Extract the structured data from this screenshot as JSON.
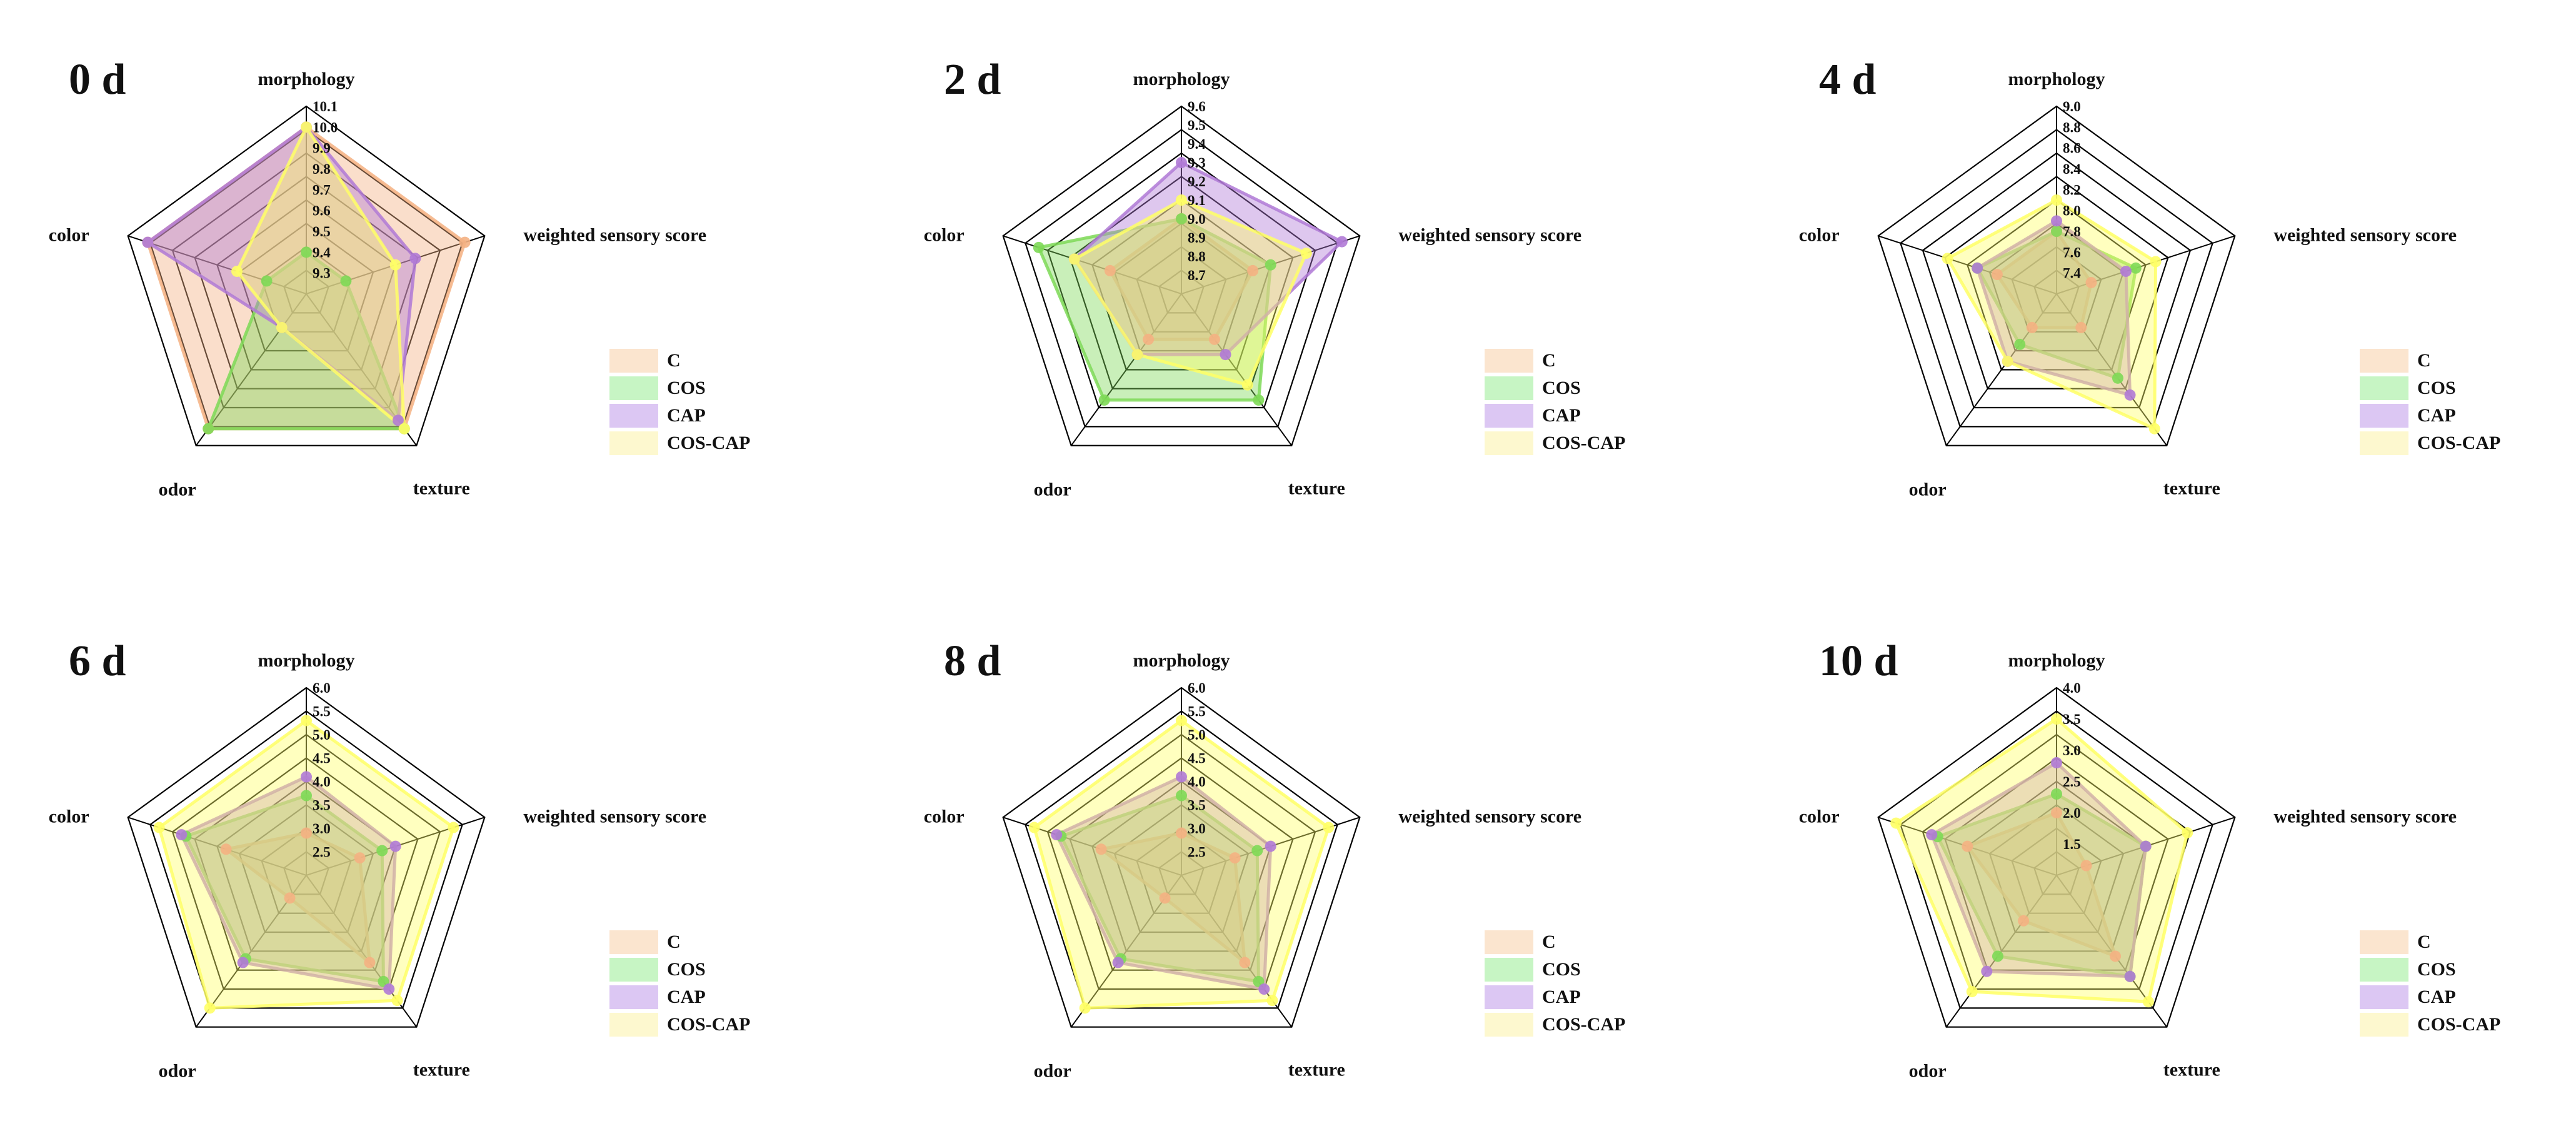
{
  "chart_data": [
    {
      "type": "radar",
      "title": "0 d",
      "axes": [
        "morphology",
        "weighted sensory score",
        "texture",
        "odor",
        "color"
      ],
      "rlim": [
        9.2,
        10.1
      ],
      "tick_labels": [
        "9.3",
        "9.4",
        "9.5",
        "9.6",
        "9.7",
        "9.8",
        "9.9",
        "10.0",
        "10.1"
      ],
      "series": [
        {
          "name": "C",
          "values": [
            10.0,
            10.0,
            10.0,
            10.0,
            10.0
          ]
        },
        {
          "name": "COS",
          "values": [
            9.4,
            9.4,
            10.0,
            10.0,
            9.4
          ]
        },
        {
          "name": "CAP",
          "values": [
            10.0,
            9.75,
            9.95,
            9.4,
            10.0
          ]
        },
        {
          "name": "COS-CAP",
          "values": [
            10.0,
            9.65,
            10.0,
            9.4,
            9.55
          ]
        }
      ],
      "legend": "right"
    },
    {
      "type": "radar",
      "title": "2 d",
      "axes": [
        "morphology",
        "weighted sensory score",
        "texture",
        "odor",
        "color"
      ],
      "rlim": [
        8.6,
        9.6
      ],
      "tick_labels": [
        "8.7",
        "8.8",
        "8.9",
        "9.0",
        "9.1",
        "9.2",
        "9.3",
        "9.4",
        "9.5",
        "9.6"
      ],
      "series": [
        {
          "name": "C",
          "values": [
            9.0,
            9.0,
            8.9,
            8.9,
            9.0
          ]
        },
        {
          "name": "COS",
          "values": [
            9.0,
            9.1,
            9.3,
            9.3,
            9.4
          ]
        },
        {
          "name": "CAP",
          "values": [
            9.3,
            9.5,
            9.0,
            9.0,
            9.2
          ]
        },
        {
          "name": "COS-CAP",
          "values": [
            9.1,
            9.3,
            9.2,
            9.0,
            9.2
          ]
        }
      ],
      "legend": "right"
    },
    {
      "type": "radar",
      "title": "4 d",
      "axes": [
        "morphology",
        "weighted sensory score",
        "texture",
        "odor",
        "color"
      ],
      "rlim": [
        7.2,
        9.0
      ],
      "tick_labels": [
        "7.4",
        "7.6",
        "7.8",
        "8.0",
        "8.2",
        "8.4",
        "8.6",
        "8.8",
        "9.0"
      ],
      "series": [
        {
          "name": "C",
          "values": [
            7.8,
            7.55,
            7.6,
            7.6,
            7.8
          ]
        },
        {
          "name": "COS",
          "values": [
            7.8,
            8.0,
            8.2,
            7.8,
            8.0
          ]
        },
        {
          "name": "CAP",
          "values": [
            7.9,
            7.9,
            8.4,
            8.0,
            8.0
          ]
        },
        {
          "name": "COS-CAP",
          "values": [
            8.1,
            8.2,
            8.8,
            8.0,
            8.3
          ]
        }
      ],
      "legend": "right"
    },
    {
      "type": "radar",
      "title": "6 d",
      "axes": [
        "morphology",
        "weighted sensory score",
        "texture",
        "odor",
        "color"
      ],
      "rlim": [
        2.0,
        6.0
      ],
      "tick_labels": [
        "2.5",
        "3.0",
        "3.5",
        "4.0",
        "4.5",
        "5.0",
        "5.5",
        "6.0"
      ],
      "series": [
        {
          "name": "C",
          "values": [
            2.9,
            3.2,
            4.3,
            2.6,
            3.8
          ]
        },
        {
          "name": "COS",
          "values": [
            3.7,
            3.7,
            4.8,
            4.2,
            4.7
          ]
        },
        {
          "name": "CAP",
          "values": [
            4.1,
            4.0,
            5.0,
            4.3,
            4.8
          ]
        },
        {
          "name": "COS-CAP",
          "values": [
            5.3,
            5.3,
            5.3,
            5.5,
            5.3
          ]
        }
      ],
      "legend": "right"
    },
    {
      "type": "radar",
      "title": "8 d",
      "axes": [
        "morphology",
        "weighted sensory score",
        "texture",
        "odor",
        "color"
      ],
      "rlim": [
        2.0,
        6.0
      ],
      "tick_labels": [
        "2.5",
        "3.0",
        "3.5",
        "4.0",
        "4.5",
        "5.0",
        "5.5",
        "6.0"
      ],
      "series": [
        {
          "name": "C",
          "values": [
            2.9,
            3.2,
            4.3,
            2.6,
            3.8
          ]
        },
        {
          "name": "COS",
          "values": [
            3.7,
            3.7,
            4.8,
            4.2,
            4.7
          ]
        },
        {
          "name": "CAP",
          "values": [
            4.1,
            4.0,
            5.0,
            4.3,
            4.8
          ]
        },
        {
          "name": "COS-CAP",
          "values": [
            5.3,
            5.3,
            5.3,
            5.5,
            5.3
          ]
        }
      ],
      "legend": "right"
    },
    {
      "type": "radar",
      "title": "10 d",
      "axes": [
        "morphology",
        "weighted sensory score",
        "texture",
        "odor",
        "color"
      ],
      "rlim": [
        1.0,
        4.0
      ],
      "tick_labels": [
        "1.5",
        "2.0",
        "2.5",
        "3.0",
        "3.5",
        "4.0"
      ],
      "series": [
        {
          "name": "C",
          "values": [
            2.0,
            1.5,
            2.6,
            1.9,
            2.5
          ]
        },
        {
          "name": "COS",
          "values": [
            2.3,
            2.5,
            3.0,
            2.6,
            3.0
          ]
        },
        {
          "name": "CAP",
          "values": [
            2.8,
            2.5,
            3.0,
            2.9,
            3.1
          ]
        },
        {
          "name": "COS-CAP",
          "values": [
            3.5,
            3.2,
            3.5,
            3.3,
            3.7
          ]
        }
      ],
      "legend": "right"
    }
  ],
  "colors": {
    "C": "#f4b183",
    "COS": "#7ed957",
    "CAP": "#b07ad6",
    "COS-CAP": "#ffff66",
    "C_swatch": "#fbe5cf",
    "COS_swatch": "#c7f5c4",
    "CAP_swatch": "#dcc7f3",
    "COS-CAP_swatch": "#fdf8cf",
    "grid": "#000000"
  }
}
